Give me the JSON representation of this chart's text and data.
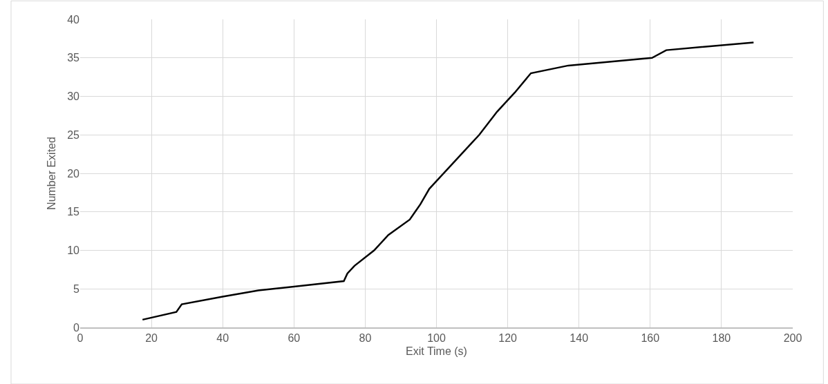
{
  "chart_data": {
    "type": "line",
    "xlabel": "Exit Time (s)",
    "ylabel": "Number Exited",
    "x": [
      17.5,
      27,
      28.5,
      40,
      50,
      60,
      74,
      75,
      77,
      82.5,
      86.5,
      92.5,
      94,
      95.5,
      98,
      104,
      110,
      112,
      117,
      119,
      122,
      126.5,
      137,
      160.5,
      164.5,
      189
    ],
    "series": [
      {
        "color": "#000000",
        "values": [
          1,
          2,
          3,
          4,
          4.8,
          5.3,
          6,
          7,
          8,
          10,
          12,
          14,
          15,
          16,
          18,
          21,
          24,
          25,
          28,
          29,
          30.5,
          33,
          34,
          35,
          36,
          37
        ]
      }
    ],
    "xlim": [
      0,
      200
    ],
    "xticks": [
      0,
      20,
      40,
      60,
      80,
      100,
      120,
      140,
      160,
      180,
      200
    ],
    "ylim": [
      0,
      40
    ],
    "yticks": [
      0,
      5,
      10,
      15,
      20,
      25,
      30,
      35,
      40
    ],
    "grid": true,
    "marker": "none",
    "line_style": "solid"
  }
}
